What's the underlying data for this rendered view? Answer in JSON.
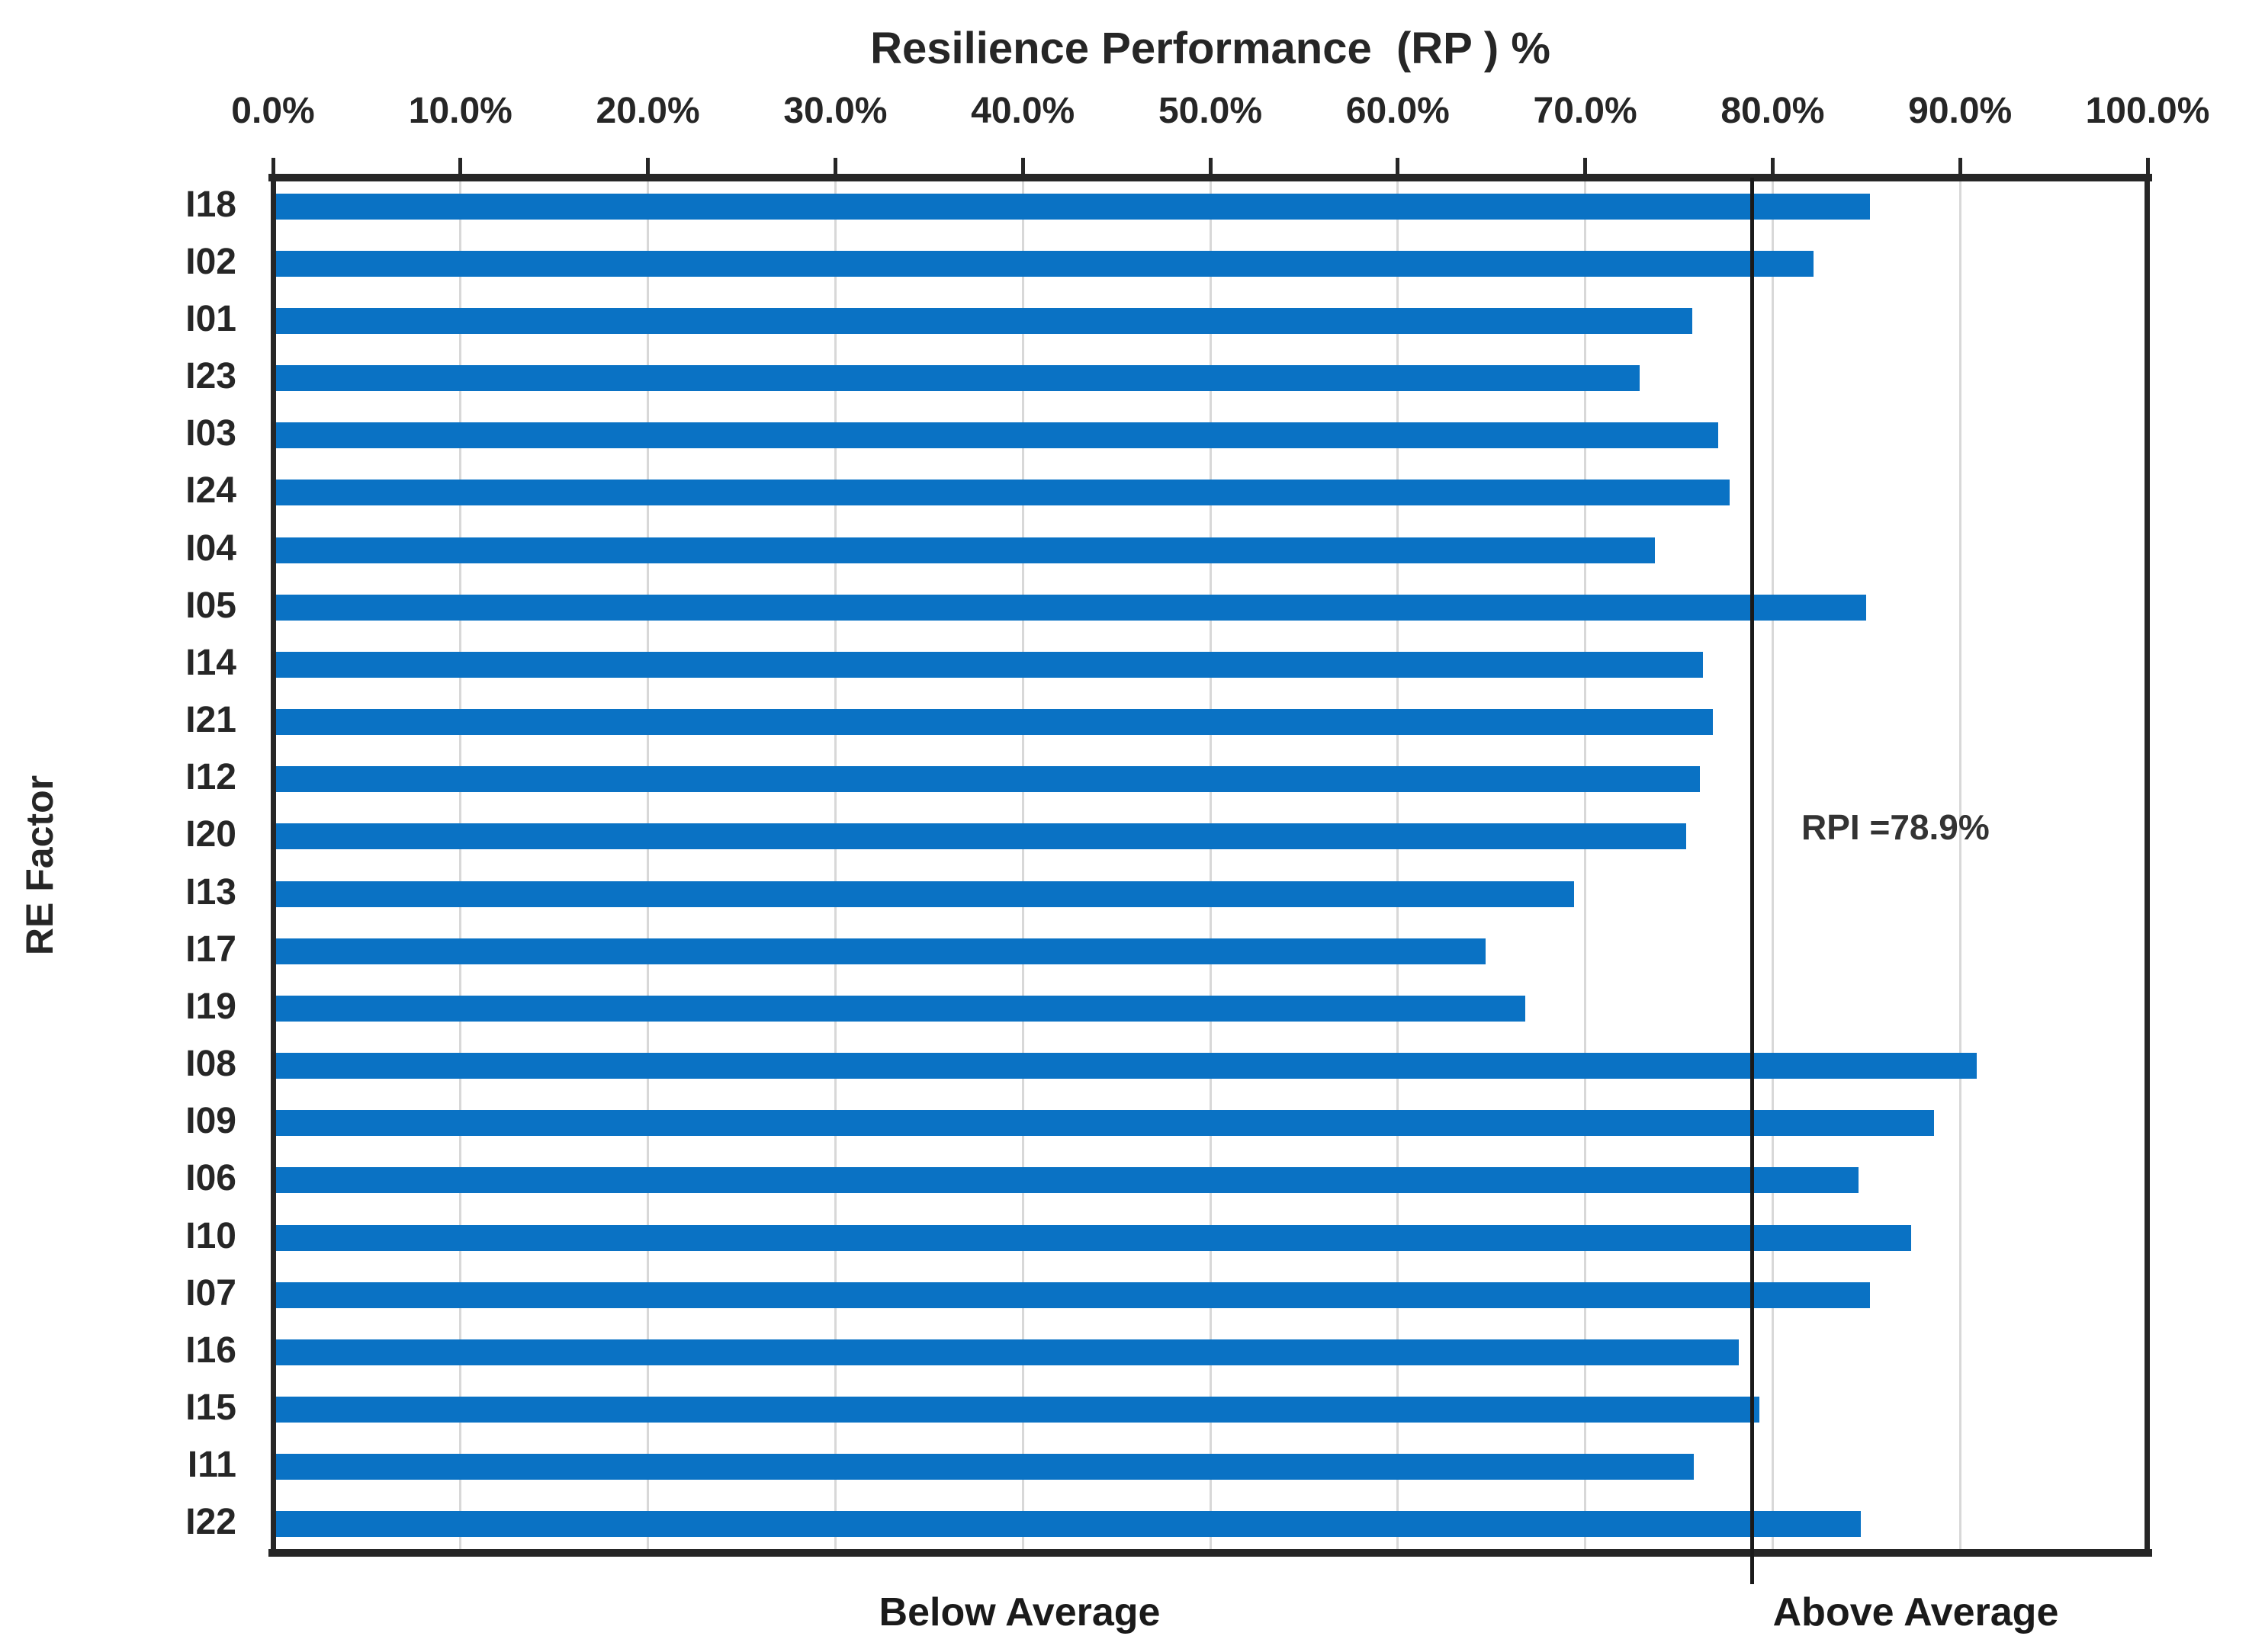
{
  "chart_data": {
    "type": "bar",
    "orientation": "horizontal",
    "title": "Resilience Performance  (RP ) %",
    "xlabel": "Resilience Performance  (RP ) %",
    "ylabel": "RE Factor",
    "categories": [
      "I18",
      "I02",
      "I01",
      "I23",
      "I03",
      "I24",
      "I04",
      "I05",
      "I14",
      "I21",
      "I12",
      "I20",
      "I13",
      "I17",
      "I19",
      "I08",
      "I09",
      "I06",
      "I10",
      "I07",
      "I16",
      "I15",
      "I11",
      "I22"
    ],
    "values": [
      85.2,
      82.2,
      75.7,
      72.9,
      77.1,
      77.7,
      73.7,
      85.0,
      76.3,
      76.8,
      76.1,
      75.4,
      69.4,
      64.7,
      66.8,
      90.9,
      88.6,
      84.6,
      87.4,
      85.2,
      78.2,
      79.3,
      75.8,
      84.7
    ],
    "value_unit": "%",
    "xlim": [
      0,
      100
    ],
    "x_ticks": [
      {
        "value": 0,
        "label": "0.0%"
      },
      {
        "value": 10,
        "label": "10.0%"
      },
      {
        "value": 20,
        "label": "20.0%"
      },
      {
        "value": 30,
        "label": "30.0%"
      },
      {
        "value": 40,
        "label": "40.0%"
      },
      {
        "value": 50,
        "label": "50.0%"
      },
      {
        "value": 60,
        "label": "60.0%"
      },
      {
        "value": 70,
        "label": "70.0%"
      },
      {
        "value": 80,
        "label": "80.0%"
      },
      {
        "value": 90,
        "label": "90.0%"
      },
      {
        "value": 100,
        "label": "100.0%"
      }
    ],
    "grid": "vertical major gridlines, 10% spacing",
    "legend": "none",
    "reference_line": {
      "value": 78.9,
      "label": "RPI =78.9%"
    },
    "region_labels": {
      "below": "Below Average",
      "above": "Above Average"
    }
  },
  "colors": {
    "bar": "#0a72c4",
    "axis": "#262626",
    "grid": "#d8d8d8",
    "reference_line": "#1a1a1a",
    "text": "#262626",
    "background": "#ffffff"
  }
}
